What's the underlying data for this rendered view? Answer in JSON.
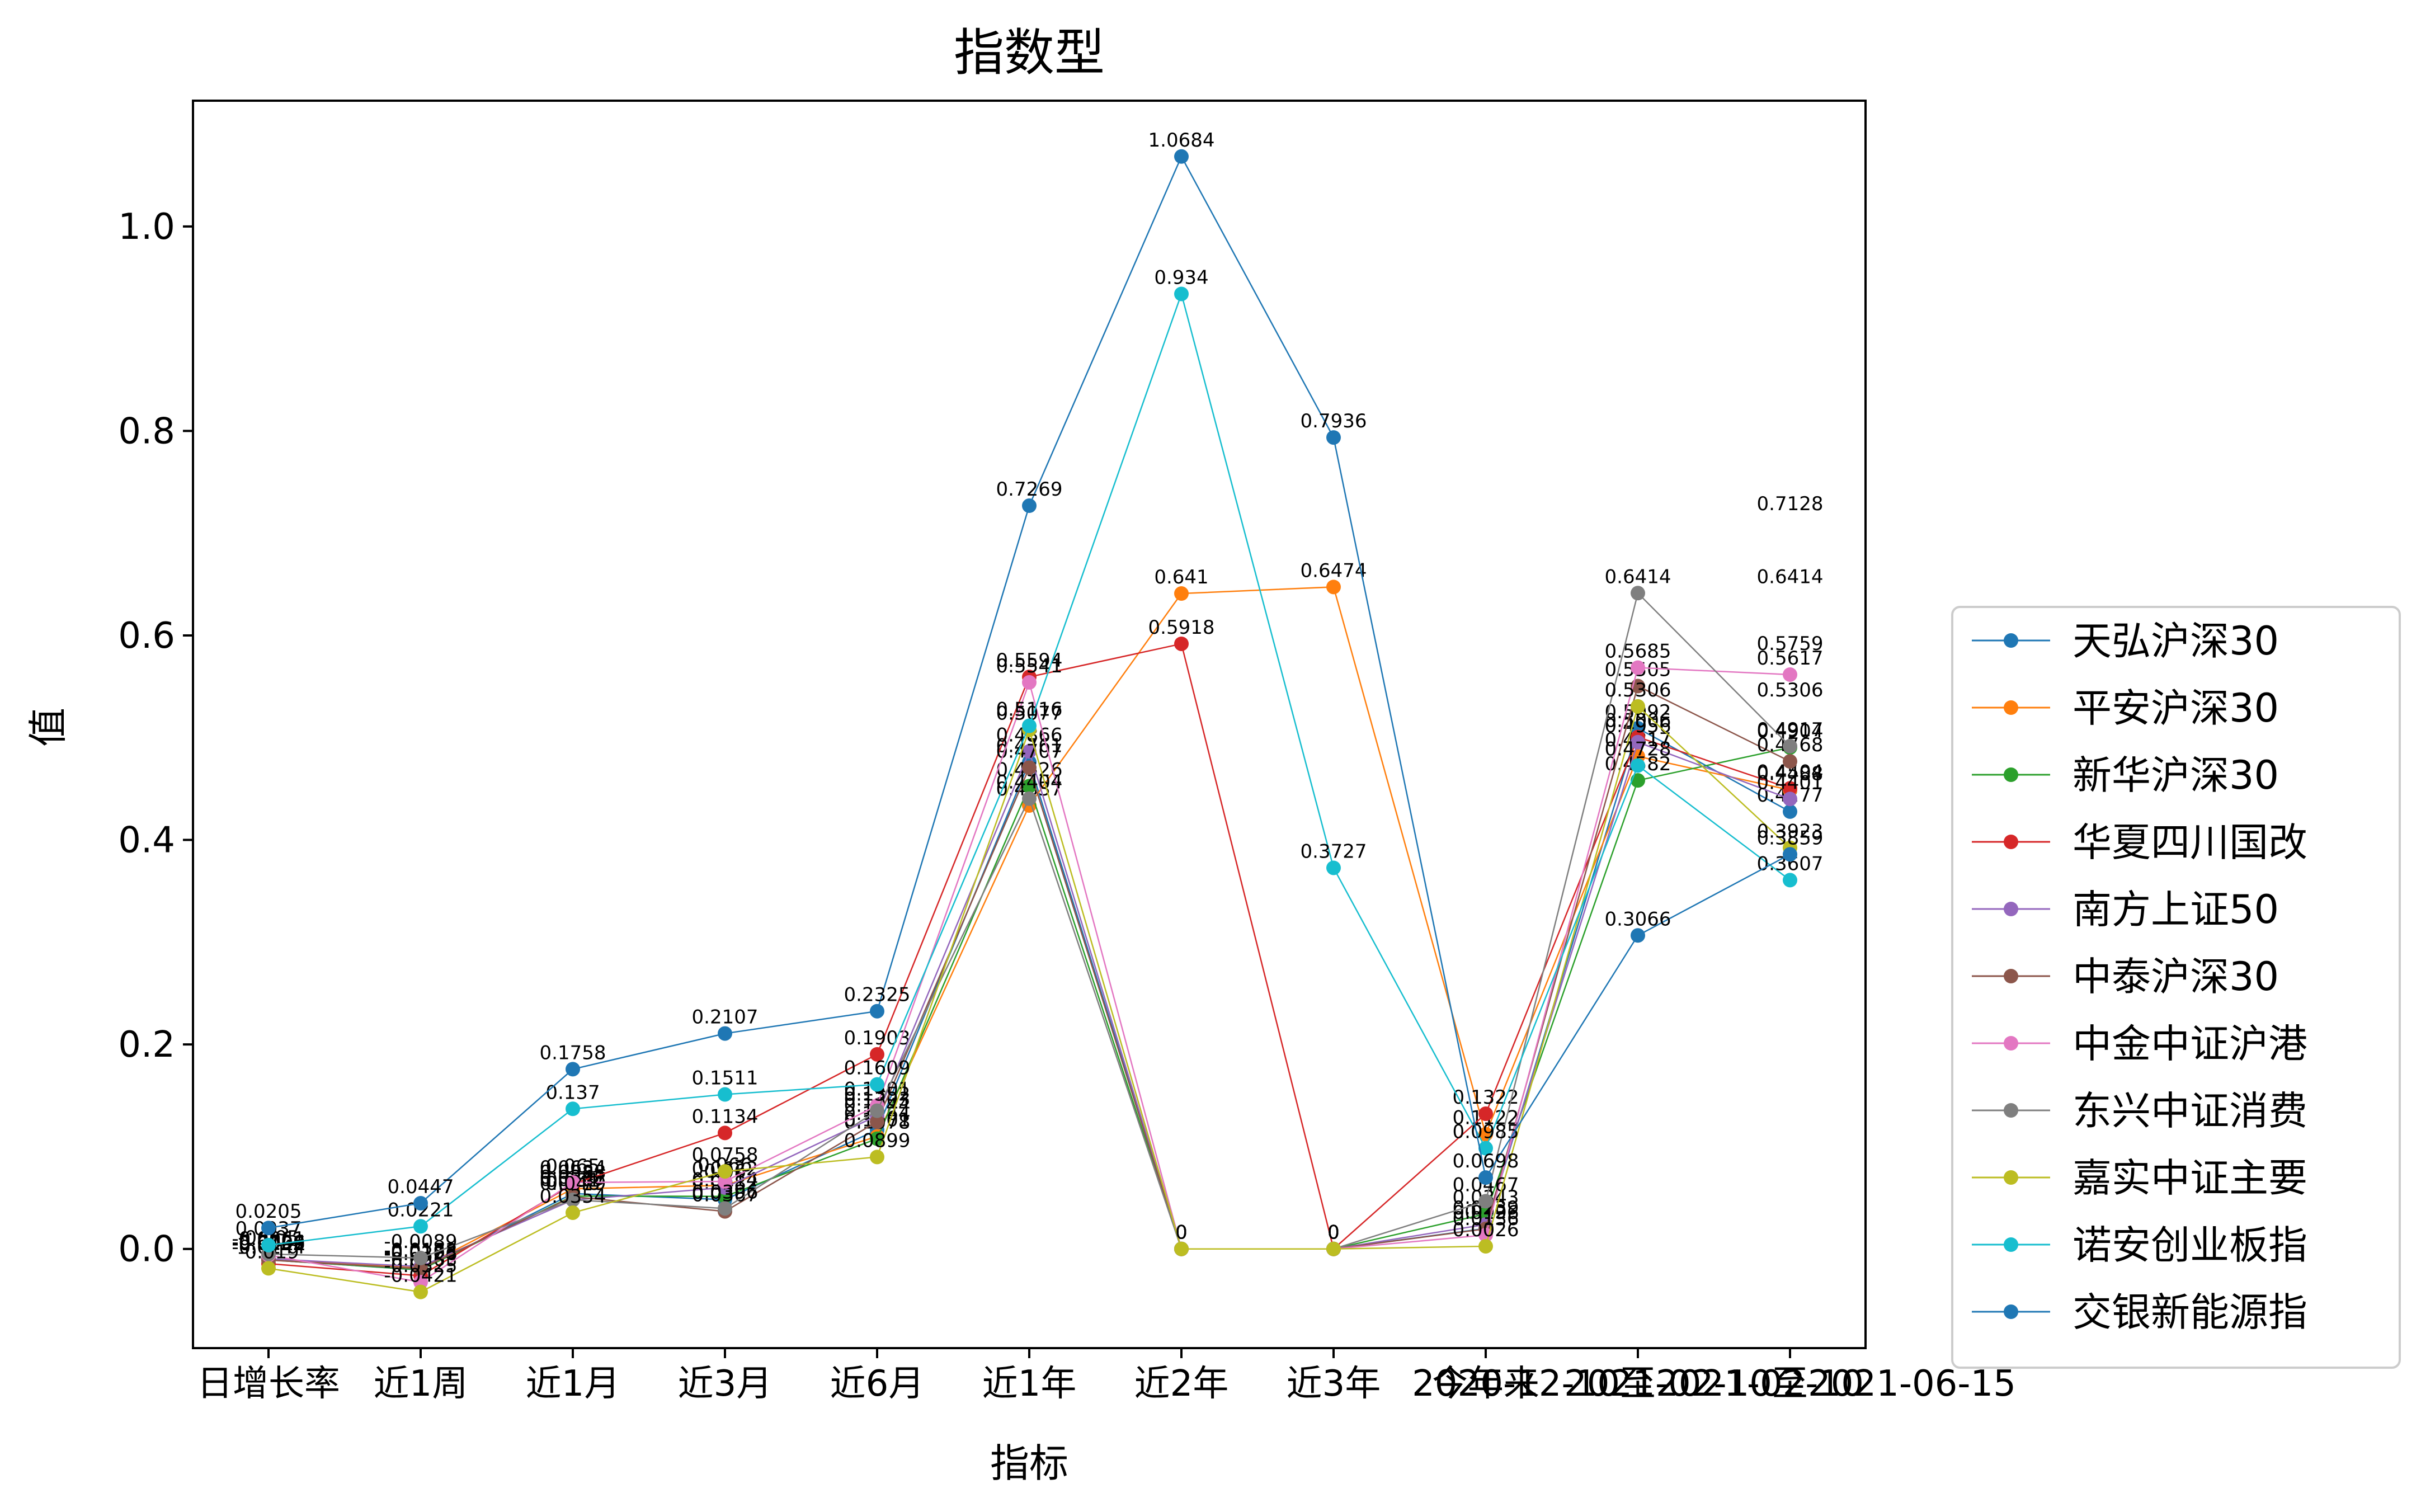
{
  "chart_data": {
    "type": "line",
    "title": "指数型",
    "xlabel": "指标",
    "ylabel": "值",
    "categories": [
      "日增长率",
      "近1周",
      "近1月",
      "近3月",
      "近6月",
      "近1年",
      "近2年",
      "近3年",
      "今年来",
      "2020-12-10至2021-02-10",
      "2021-02-10至2021-06-15"
    ],
    "ylim": [
      -0.097,
      1.123
    ],
    "yticks": [
      "0.0",
      "0.2",
      "0.4",
      "0.6",
      "0.8",
      "1.0"
    ],
    "grid": false,
    "legend_position": "right",
    "series": [
      {
        "name": "天弘沪深30",
        "color": "#1f77b4",
        "values": [
          -0.0106,
          -0.0206,
          0.0541,
          0.0482,
          0.1164,
          0.4761,
          0,
          0,
          0.02,
          0.5092,
          0.4277
        ]
      },
      {
        "name": "平安沪深30",
        "color": "#ff7f0e",
        "values": [
          -0.0099,
          -0.0188,
          0.0588,
          0.0622,
          0.1101,
          0.4337,
          0.641,
          0.6474,
          0.1122,
          0.4817,
          0.4488
        ]
      },
      {
        "name": "新华沪深30",
        "color": "#2ca02c",
        "values": [
          -0.0107,
          -0.0204,
          0.0517,
          0.0514,
          0.1078,
          0.4526,
          0,
          0,
          0.0343,
          0.4582,
          0.4904
        ]
      },
      {
        "name": "华夏四川国改",
        "color": "#d62728",
        "values": [
          -0.0144,
          -0.0263,
          0.0634,
          0.1134,
          0.1903,
          0.5594,
          0.5918,
          0,
          0.1322,
          0.5006,
          0.4504
        ]
      },
      {
        "name": "南方上证50",
        "color": "#9467bd",
        "values": [
          -0.0096,
          -0.0173,
          0.0479,
          0.06,
          0.1303,
          0.4866,
          0,
          0,
          0.0239,
          0.4956,
          0.4401
        ]
      },
      {
        "name": "中泰沪深30",
        "color": "#8c564b",
        "values": [
          -0.0109,
          -0.0193,
          0.051,
          0.0367,
          0.1244,
          0.4707,
          0,
          0,
          0.0196,
          0.5505,
          0.4768
        ]
      },
      {
        "name": "中金中证沪港",
        "color": "#e377c2",
        "values": [
          -0.0061,
          -0.0325,
          0.065,
          0.066,
          0.1401,
          0.5541,
          0,
          0,
          0.0136,
          0.5685,
          0.5617
        ]
      },
      {
        "name": "东兴中证消费",
        "color": "#7f7f7f",
        "values": [
          -0.005,
          -0.0089,
          0.048,
          0.0396,
          0.1352,
          0.4404,
          0,
          0,
          0.0467,
          0.6414,
          0.4917
        ]
      },
      {
        "name": "嘉实中证主要",
        "color": "#bcbd22",
        "values": [
          -0.019,
          -0.0421,
          0.0354,
          0.0758,
          0.0899,
          0.5077,
          0,
          0,
          0.0026,
          0.5306,
          0.3923
        ]
      },
      {
        "name": "诺安创业板指",
        "color": "#17becf",
        "values": [
          0.0037,
          0.0221,
          0.137,
          0.1511,
          0.1609,
          0.5116,
          0.934,
          0.3727,
          0.0985,
          0.4728,
          0.3607
        ]
      },
      {
        "name": "交银新能源指",
        "color": "#1f77b4",
        "values": [
          0.0205,
          0.0447,
          0.1758,
          0.2107,
          0.2325,
          0.7269,
          1.0684,
          0.7936,
          0.0698,
          0.3066,
          0.3859
        ]
      }
    ],
    "extra_labels": [
      {
        "category": 10,
        "value": 0.7128,
        "label": "0.7128"
      },
      {
        "category": 10,
        "value": 0.6414,
        "label": "0.6414"
      },
      {
        "category": 10,
        "value": 0.5759,
        "label": "0.5759"
      },
      {
        "category": 10,
        "value": 0.5306,
        "label": "0.5306"
      }
    ]
  }
}
